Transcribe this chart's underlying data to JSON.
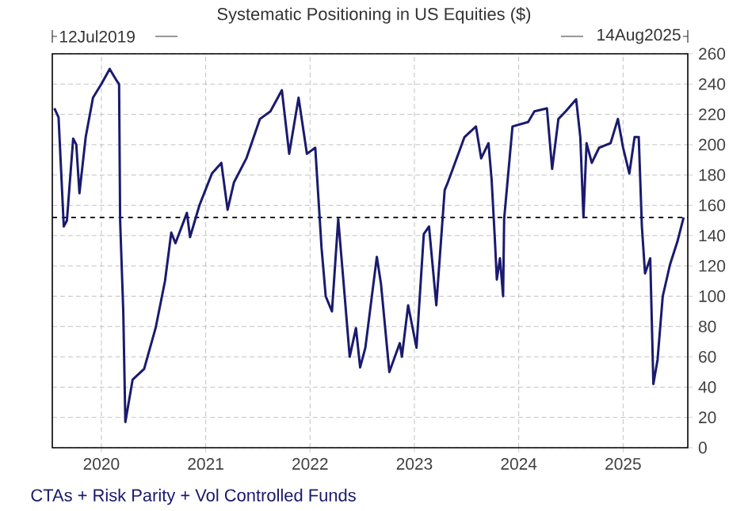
{
  "chart_data": {
    "type": "line",
    "title": "Systematic Positioning in US Equities ($)",
    "annotations": [
      "12Jul2019",
      "14Aug2025"
    ],
    "xlim": [
      2019.53,
      2025.62
    ],
    "xticks": [
      2020,
      2021,
      2022,
      2023,
      2024,
      2025
    ],
    "ylim": [
      0,
      260
    ],
    "yticks": [
      0,
      20,
      40,
      60,
      80,
      100,
      120,
      140,
      160,
      180,
      200,
      220,
      240,
      260
    ],
    "grid": true,
    "legend": "bottom left",
    "ref_lines": [
      {
        "axis": "y",
        "value": 152,
        "color": "#000000",
        "line_style": "dashed"
      }
    ],
    "series": [
      {
        "name": "CTAs + Risk Parity + Vol Controlled Funds",
        "color": "#1a1a6e",
        "x": [
          2019.55,
          2019.59,
          2019.64,
          2019.67,
          2019.73,
          2019.76,
          2019.79,
          2019.85,
          2019.92,
          2020.0,
          2020.08,
          2020.14,
          2020.17,
          2020.18,
          2020.21,
          2020.23,
          2020.3,
          2020.41,
          2020.52,
          2020.61,
          2020.67,
          2020.71,
          2020.82,
          2020.85,
          2020.94,
          2021.06,
          2021.15,
          2021.21,
          2021.27,
          2021.39,
          2021.52,
          2021.62,
          2021.73,
          2021.8,
          2021.89,
          2021.97,
          2022.05,
          2022.11,
          2022.15,
          2022.21,
          2022.27,
          2022.32,
          2022.38,
          2022.44,
          2022.48,
          2022.53,
          2022.64,
          2022.68,
          2022.76,
          2022.86,
          2022.88,
          2022.94,
          2023.02,
          2023.09,
          2023.14,
          2023.21,
          2023.29,
          2023.32,
          2023.48,
          2023.59,
          2023.64,
          2023.71,
          2023.74,
          2023.77,
          2023.79,
          2023.82,
          2023.85,
          2023.86,
          2023.94,
          2024.09,
          2024.15,
          2024.27,
          2024.32,
          2024.38,
          2024.45,
          2024.55,
          2024.59,
          2024.62,
          2024.65,
          2024.7,
          2024.77,
          2024.88,
          2024.95,
          2025.0,
          2025.06,
          2025.11,
          2025.15,
          2025.18,
          2025.21,
          2025.26,
          2025.29,
          2025.33,
          2025.38,
          2025.45,
          2025.52,
          2025.58
        ],
        "values": [
          224,
          218,
          146,
          150,
          204,
          200,
          168,
          205,
          231,
          240,
          250,
          243,
          240,
          150,
          90,
          17,
          45,
          52,
          79,
          110,
          142,
          135,
          155,
          139,
          160,
          181,
          188,
          157,
          175,
          191,
          217,
          222,
          236,
          194,
          231,
          194,
          198,
          132,
          100,
          90,
          151,
          110,
          60,
          79,
          53,
          66,
          126,
          108,
          50,
          69,
          60,
          94,
          66,
          141,
          146,
          94,
          170,
          175,
          205,
          212,
          191,
          201,
          177,
          139,
          111,
          125,
          100,
          151,
          212,
          215,
          222,
          224,
          184,
          217,
          222,
          230,
          205,
          152,
          201,
          188,
          198,
          201,
          217,
          198,
          181,
          205,
          205,
          146,
          115,
          125,
          42,
          58,
          100,
          121,
          136,
          152
        ]
      }
    ]
  }
}
